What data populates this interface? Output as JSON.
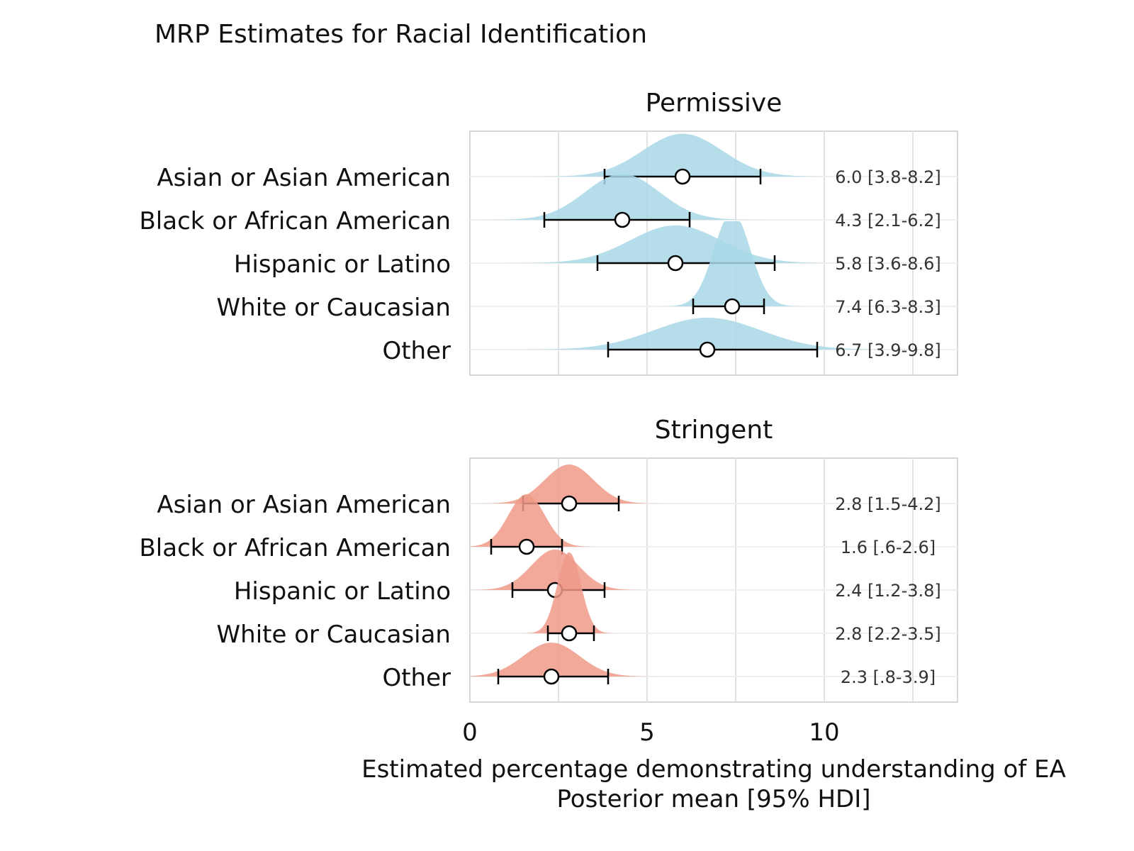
{
  "chart_data": {
    "type": "ridgeline",
    "title": "MRP Estimates for Racial Identification",
    "xlabel": "Estimated percentage demonstrating understanding of EA",
    "xlabel2": "Posterior mean [95% HDI]",
    "xlim": [
      0,
      13.75
    ],
    "xticks": [
      0,
      5,
      10
    ],
    "xtick_labels": [
      "0",
      "5",
      "10"
    ],
    "grid": true,
    "categories": [
      "Asian or Asian American",
      "Black or African American",
      "Hispanic or Latino",
      "White or Caucasian",
      "Other"
    ],
    "panels": [
      {
        "name": "Permissive",
        "color": "#a8d8e6",
        "mean": [
          6.0,
          4.3,
          5.8,
          7.4,
          6.7
        ],
        "lo": [
          3.8,
          2.1,
          3.6,
          6.3,
          3.9
        ],
        "hi": [
          8.2,
          6.2,
          8.6,
          8.3,
          9.8
        ],
        "labels": [
          "6.0 [3.8-8.2]",
          "4.3 [2.1-6.2]",
          "5.8 [3.6-8.6]",
          "7.4 [6.3-8.3]",
          "6.7 [3.9-9.8]"
        ]
      },
      {
        "name": "Stringent",
        "color": "#f09a88",
        "mean": [
          2.8,
          1.6,
          2.4,
          2.8,
          2.3
        ],
        "lo": [
          1.5,
          0.6,
          1.2,
          2.2,
          0.8
        ],
        "hi": [
          4.2,
          2.6,
          3.8,
          3.5,
          3.9
        ],
        "labels": [
          "2.8 [1.5-4.2]",
          "1.6 [.6-2.6]",
          "2.4 [1.2-3.8]",
          "2.8 [2.2-3.5]",
          "2.3 [.8-3.9]"
        ]
      }
    ]
  }
}
